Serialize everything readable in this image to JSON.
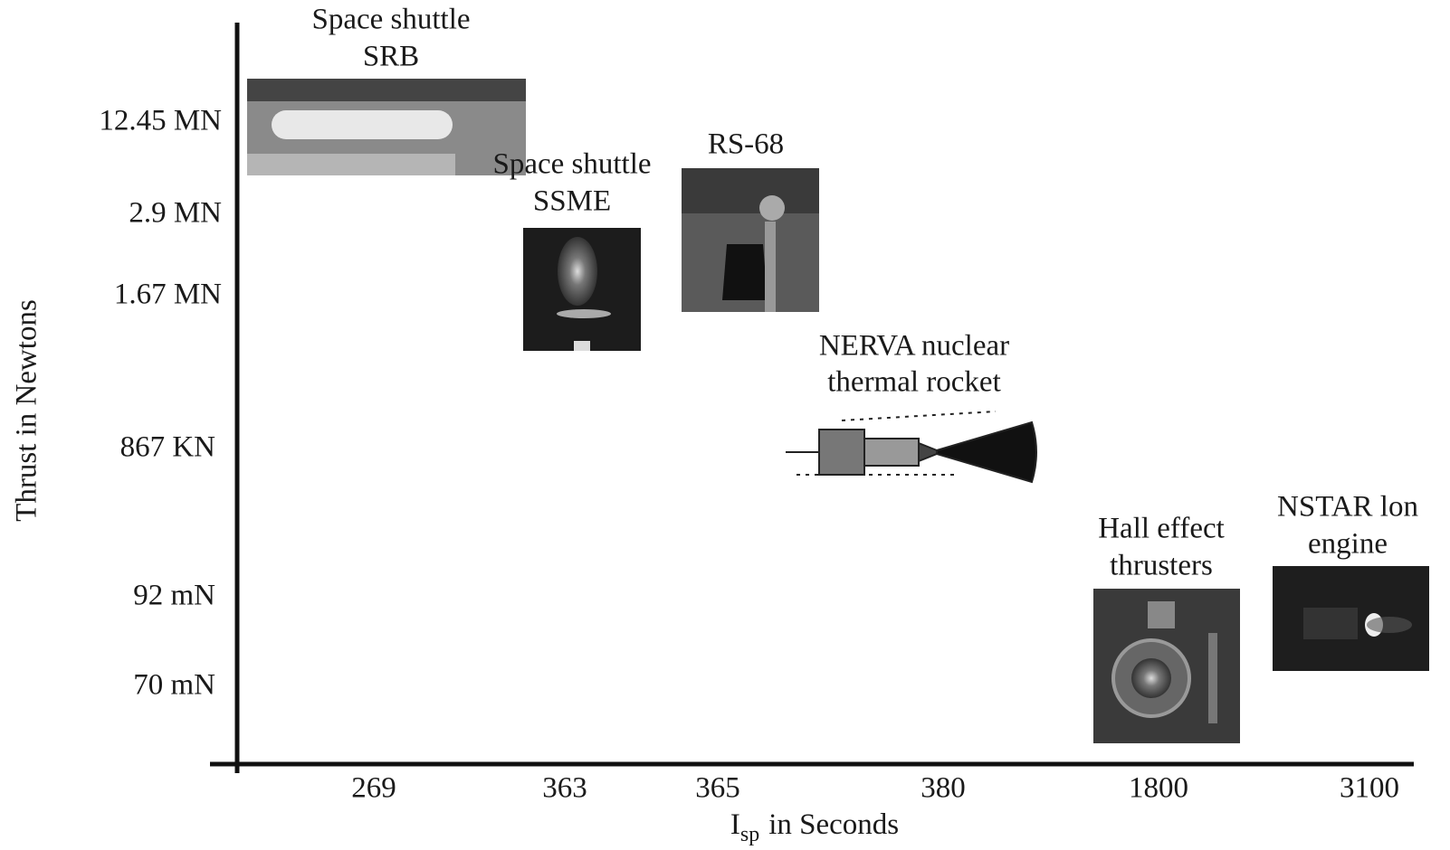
{
  "y_axis": {
    "title": "Thrust in Newtons",
    "labels": [
      "12.45 MN",
      "2.9 MN",
      "1.67 MN",
      "867 KN",
      "92 mN",
      "70 mN"
    ]
  },
  "x_axis": {
    "title": {
      "symbol": "I",
      "subscript": "sp",
      "text": "in Seconds"
    },
    "labels": [
      "269",
      "363",
      "365",
      "380",
      "1800",
      "3100"
    ]
  },
  "engines": [
    {
      "label": [
        "Space shuttle",
        "SRB"
      ]
    },
    {
      "label": [
        "Space shuttle",
        "SSME"
      ]
    },
    {
      "label": [
        "RS-68"
      ]
    },
    {
      "label": [
        "NERVA nuclear",
        "thermal rocket"
      ]
    },
    {
      "label": [
        "Hall effect",
        "thrusters"
      ]
    },
    {
      "label": [
        "NSTAR lon",
        "engine"
      ]
    }
  ]
}
